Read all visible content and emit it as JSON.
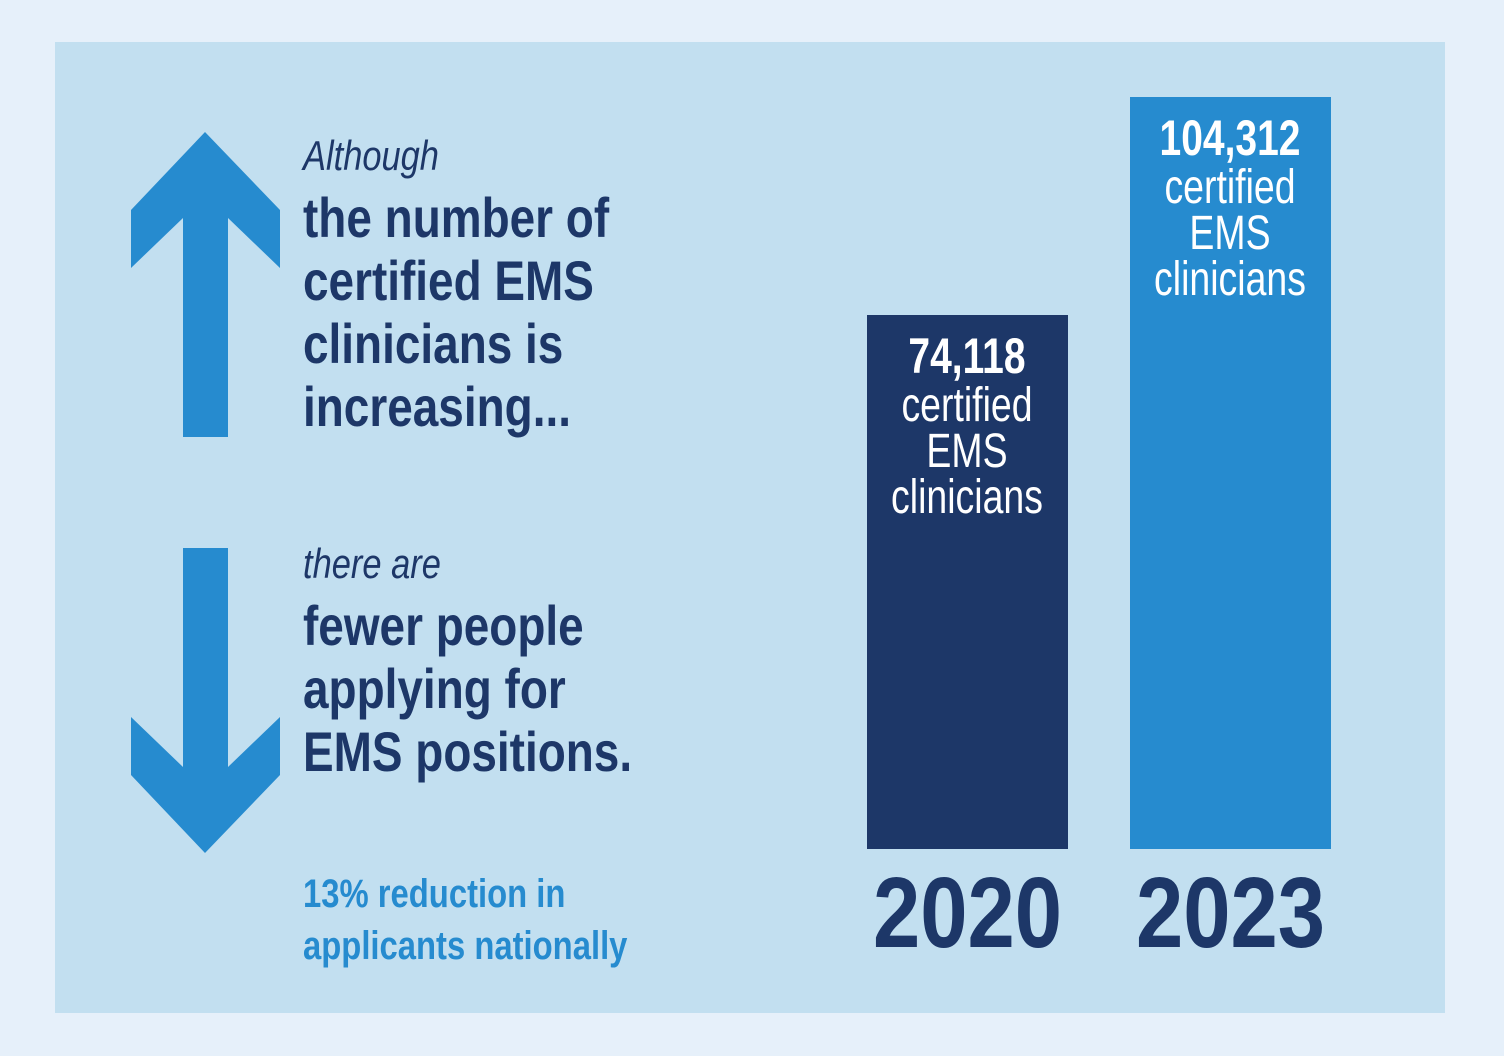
{
  "chart_data": {
    "type": "bar",
    "categories": [
      "2020",
      "2023"
    ],
    "values": [
      74118,
      104312
    ],
    "value_labels": [
      "74,118",
      "104,312"
    ],
    "bar_label": "certified EMS clinicians",
    "colors": [
      "#1d3768",
      "#268bcf"
    ],
    "ylim": [
      0,
      110000
    ],
    "annotations": {
      "top_intro": "Although",
      "top_main": "the number of certified EMS clinicians is increasing...",
      "bottom_intro": "there are",
      "bottom_main": "fewer people applying for EMS positions.",
      "note": "13% reduction in applicants nationally"
    }
  }
}
